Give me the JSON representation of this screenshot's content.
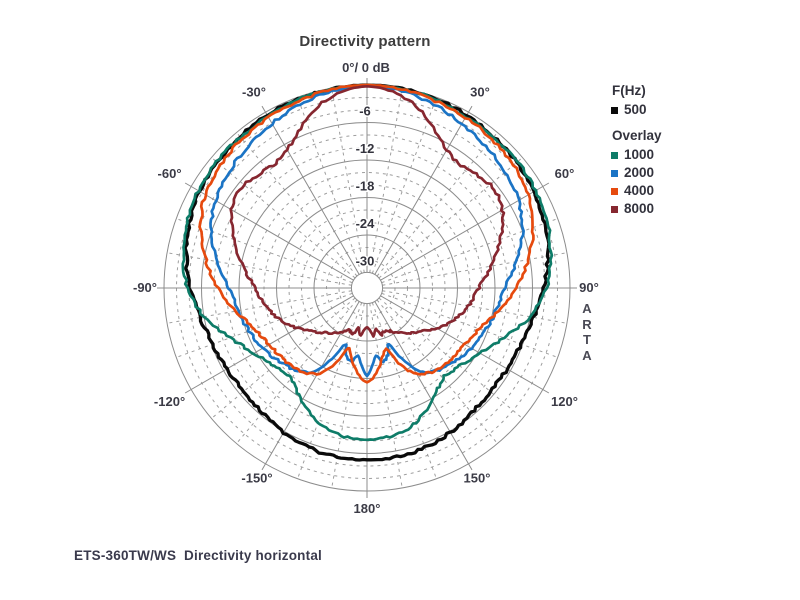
{
  "chart_data": {
    "type": "polar-line",
    "title": "Directivity pattern",
    "caption": "ETS-360TW/WS  Directivity horizontal",
    "watermark": "ARTA",
    "units": "dB",
    "db_axis_max": 0,
    "db_axis_min": -30,
    "db_major_step": 6,
    "db_minor_step": 2,
    "angle_major_step_deg": 30,
    "angle_minor_step_deg": 10,
    "zero_label": "0°/ 0 dB",
    "angle_labels": [
      {
        "deg": 0,
        "label": "0°/ 0 dB"
      },
      {
        "deg": 30,
        "label": "30°"
      },
      {
        "deg": 60,
        "label": "60°"
      },
      {
        "deg": 90,
        "label": "90°"
      },
      {
        "deg": 120,
        "label": "120°"
      },
      {
        "deg": 150,
        "label": "150°"
      },
      {
        "deg": 180,
        "label": "180°"
      },
      {
        "deg": -150,
        "label": "-150°"
      },
      {
        "deg": -120,
        "label": "-120°"
      },
      {
        "deg": -90,
        "label": "-90°"
      },
      {
        "deg": -60,
        "label": "-60°"
      },
      {
        "deg": -30,
        "label": "-30°"
      }
    ],
    "db_tick_labels": [
      {
        "db": -6,
        "label": "-6"
      },
      {
        "db": -12,
        "label": "-12"
      },
      {
        "db": -18,
        "label": "-18"
      },
      {
        "db": -24,
        "label": "-24"
      },
      {
        "db": -30,
        "label": "-30"
      }
    ],
    "legend": {
      "primary_header": "F(Hz)",
      "overlay_header": "Overlay"
    },
    "series": [
      {
        "name": "500",
        "label": "500",
        "group": "primary",
        "color": "#0a0a0a",
        "points": [
          [
            0,
            0
          ],
          [
            10,
            -0.1
          ],
          [
            20,
            -0.3
          ],
          [
            30,
            -0.6
          ],
          [
            40,
            -0.9
          ],
          [
            50,
            -1.2
          ],
          [
            60,
            -1.6
          ],
          [
            70,
            -2.2
          ],
          [
            80,
            -3.1
          ],
          [
            90,
            -4.2
          ],
          [
            100,
            -5.4
          ],
          [
            110,
            -6.2
          ],
          [
            120,
            -6.6
          ],
          [
            130,
            -6.7
          ],
          [
            140,
            -6.4
          ],
          [
            150,
            -5.8
          ],
          [
            160,
            -5.3
          ],
          [
            170,
            -5.0
          ],
          [
            180,
            -5.0
          ]
        ]
      },
      {
        "name": "1000",
        "label": "1000",
        "group": "overlay",
        "color": "#0e7c68",
        "points": [
          [
            0,
            0
          ],
          [
            10,
            -0.2
          ],
          [
            20,
            -0.4
          ],
          [
            30,
            -0.8
          ],
          [
            40,
            -1.0
          ],
          [
            50,
            -1.1
          ],
          [
            60,
            -1.3
          ],
          [
            70,
            -1.8
          ],
          [
            80,
            -2.6
          ],
          [
            90,
            -3.8
          ],
          [
            100,
            -6.0
          ],
          [
            110,
            -9.2
          ],
          [
            120,
            -11.6
          ],
          [
            130,
            -13.1
          ],
          [
            140,
            -13.6
          ],
          [
            150,
            -11.6
          ],
          [
            160,
            -9.6
          ],
          [
            170,
            -8.5
          ],
          [
            180,
            -8.2
          ]
        ]
      },
      {
        "name": "2000",
        "label": "2000",
        "group": "overlay",
        "color": "#1b74c5",
        "points": [
          [
            0,
            -0.1
          ],
          [
            10,
            -0.5
          ],
          [
            20,
            -1.2
          ],
          [
            30,
            -2.1
          ],
          [
            40,
            -2.9
          ],
          [
            50,
            -3.6
          ],
          [
            60,
            -4.5
          ],
          [
            70,
            -6.0
          ],
          [
            80,
            -8.2
          ],
          [
            90,
            -10.4
          ],
          [
            100,
            -11.5
          ],
          [
            110,
            -12.4
          ],
          [
            120,
            -13.2
          ],
          [
            130,
            -14.2
          ],
          [
            140,
            -15.2
          ],
          [
            148,
            -16.8
          ],
          [
            155,
            -20.5
          ],
          [
            159,
            -22.8
          ],
          [
            163,
            -21.2
          ],
          [
            168,
            -20.4
          ],
          [
            172,
            -21.6
          ],
          [
            176,
            -20.0
          ],
          [
            180,
            -18.4
          ]
        ]
      },
      {
        "name": "4000",
        "label": "4000",
        "group": "overlay",
        "color": "#e64a0e",
        "points": [
          [
            0,
            0
          ],
          [
            10,
            -0.2
          ],
          [
            20,
            -0.6
          ],
          [
            30,
            -1.0
          ],
          [
            40,
            -1.4
          ],
          [
            50,
            -1.9
          ],
          [
            60,
            -2.6
          ],
          [
            70,
            -4.2
          ],
          [
            80,
            -6.3
          ],
          [
            90,
            -8.6
          ],
          [
            100,
            -11.2
          ],
          [
            110,
            -13.3
          ],
          [
            120,
            -14.4
          ],
          [
            130,
            -14.9
          ],
          [
            140,
            -15.3
          ],
          [
            150,
            -16.6
          ],
          [
            157,
            -19.2
          ],
          [
            162,
            -22.3
          ],
          [
            167,
            -21.2
          ],
          [
            172,
            -19.4
          ],
          [
            176,
            -18.1
          ],
          [
            180,
            -17.4
          ]
        ]
      },
      {
        "name": "8000",
        "label": "8000",
        "group": "overlay",
        "color": "#862730",
        "points": [
          [
            0,
            -0.2
          ],
          [
            8,
            -0.9
          ],
          [
            16,
            -2.6
          ],
          [
            24,
            -5.2
          ],
          [
            30,
            -6.9
          ],
          [
            36,
            -7.7
          ],
          [
            44,
            -7.3
          ],
          [
            52,
            -6.7
          ],
          [
            60,
            -7.5
          ],
          [
            70,
            -9.8
          ],
          [
            80,
            -12.3
          ],
          [
            90,
            -14.6
          ],
          [
            100,
            -16.0
          ],
          [
            110,
            -17.6
          ],
          [
            120,
            -19.6
          ],
          [
            130,
            -21.6
          ],
          [
            140,
            -23.1
          ],
          [
            150,
            -24.4
          ],
          [
            157,
            -25.1
          ],
          [
            163,
            -24.7
          ],
          [
            168,
            -25.9
          ],
          [
            172,
            -24.7
          ],
          [
            176,
            -25.7
          ],
          [
            180,
            -26.2
          ]
        ]
      }
    ]
  },
  "colors": {
    "grid_major": "#8c8c8c",
    "grid_minor": "#9e9e9e",
    "axis_text": "#33333d",
    "angle_text": "#3b3b46"
  }
}
